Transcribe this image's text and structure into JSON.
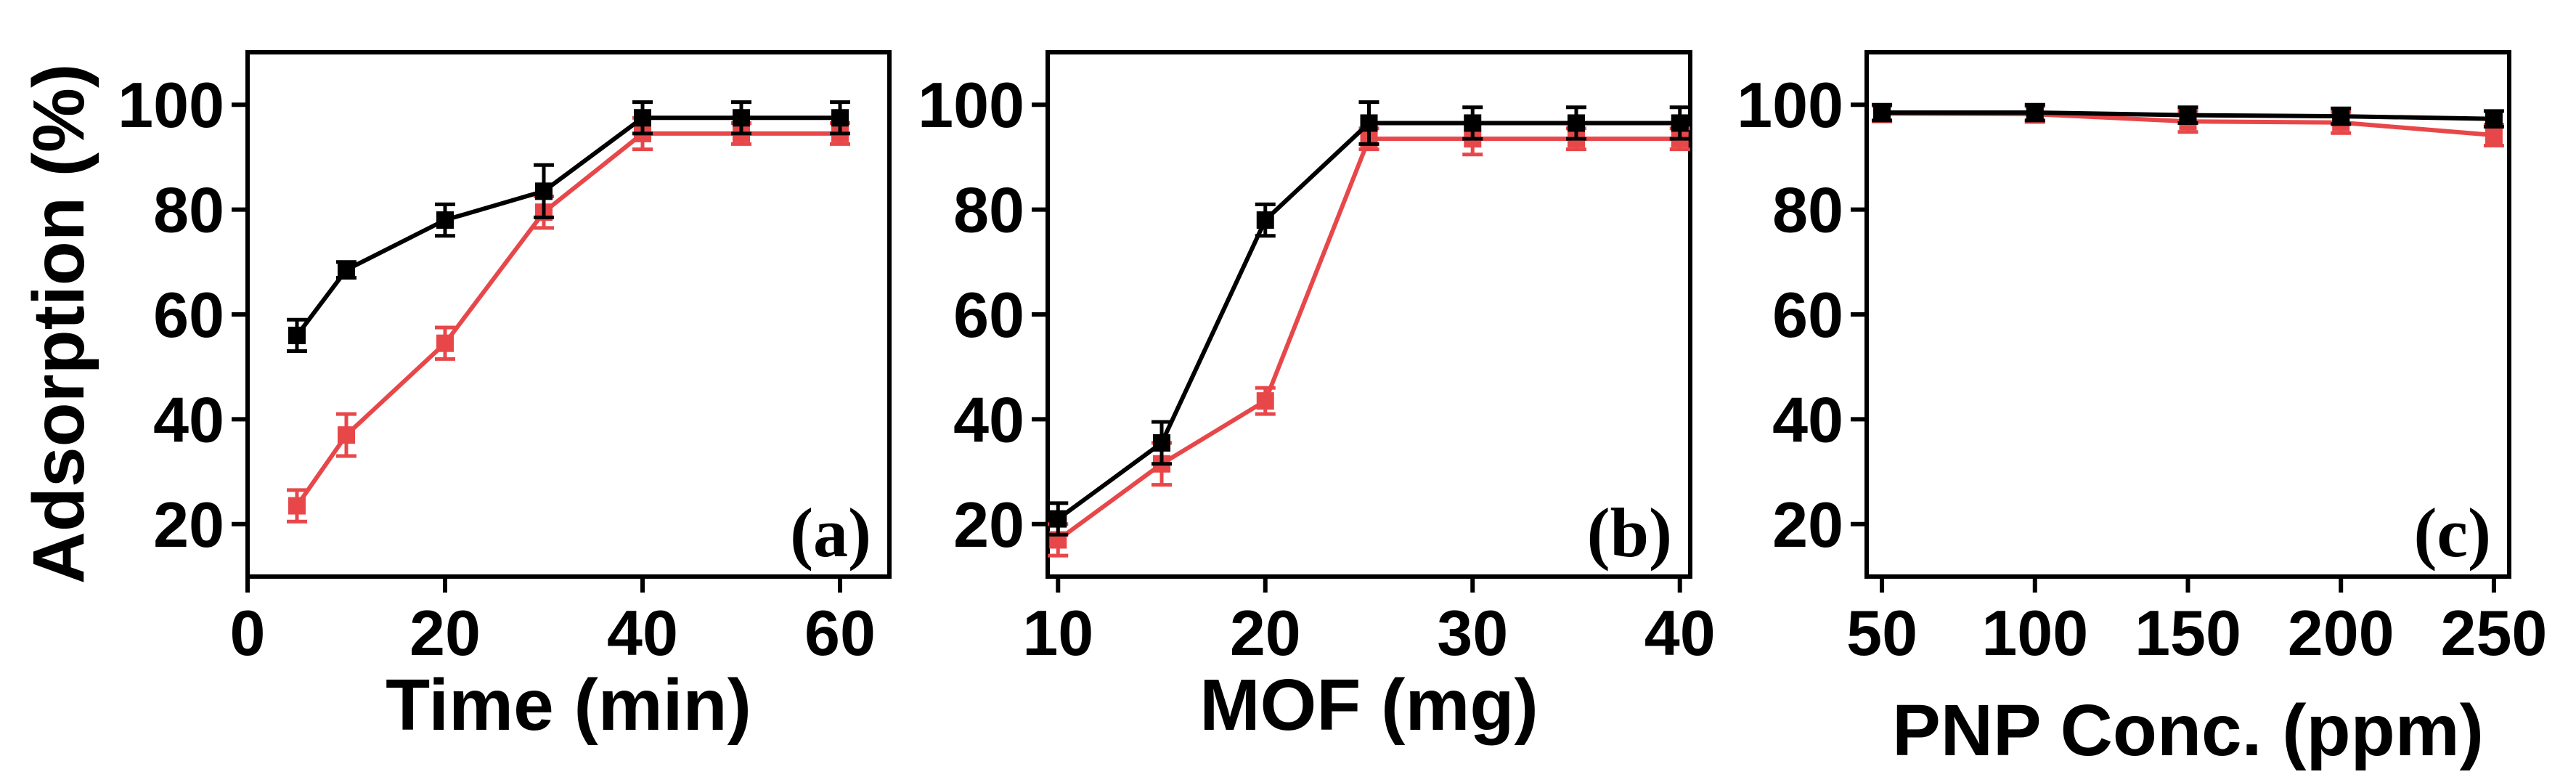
{
  "chart_data": [
    {
      "type": "line",
      "panel_label": "(a)",
      "xlabel": "Time (min)",
      "ylabel": "Adsorption (%)",
      "xlim": [
        0,
        65
      ],
      "ylim": [
        10,
        110
      ],
      "xticks": [
        0,
        20,
        40,
        60
      ],
      "yticks": [
        20,
        40,
        60,
        80,
        100
      ],
      "grid": false,
      "series": [
        {
          "name": "black",
          "color": "#000000",
          "x": [
            5,
            10,
            20,
            30,
            40,
            50,
            60
          ],
          "values": [
            56,
            68.5,
            78,
            83.5,
            97.5,
            97.5,
            97.5
          ],
          "errors": [
            3,
            1.5,
            3,
            5,
            3,
            3,
            3
          ]
        },
        {
          "name": "red",
          "color": "#e8474a",
          "x": [
            5,
            10,
            20,
            30,
            40,
            50,
            60
          ],
          "values": [
            23.5,
            37,
            54.5,
            79.5,
            94.5,
            94.5,
            94.5
          ],
          "errors": [
            3,
            4,
            3,
            3,
            3,
            2,
            2
          ]
        }
      ]
    },
    {
      "type": "line",
      "panel_label": "(b)",
      "xlabel": "MOF (mg)",
      "ylabel": "",
      "xlim": [
        9.5,
        40.5
      ],
      "ylim": [
        10,
        110
      ],
      "xticks": [
        10,
        20,
        30,
        40
      ],
      "yticks": [
        20,
        40,
        60,
        80,
        100
      ],
      "grid": false,
      "series": [
        {
          "name": "black",
          "color": "#000000",
          "x": [
            10,
            15,
            20,
            25,
            30,
            35,
            40
          ],
          "values": [
            21,
            35.5,
            78,
            96.5,
            96.5,
            96.5,
            96.5
          ],
          "errors": [
            3,
            4,
            3,
            4,
            3,
            3,
            3
          ]
        },
        {
          "name": "red",
          "color": "#e8474a",
          "x": [
            10,
            15,
            20,
            25,
            30,
            35,
            40
          ],
          "values": [
            17,
            31.5,
            43.5,
            93.5,
            93.5,
            93.5,
            93.5
          ],
          "errors": [
            3,
            4,
            2.5,
            2,
            3,
            2,
            2
          ]
        }
      ]
    },
    {
      "type": "line",
      "panel_label": "(c)",
      "xlabel": "PNP Conc. (ppm)",
      "ylabel": "",
      "xlim": [
        45,
        255
      ],
      "ylim": [
        10,
        110
      ],
      "xticks": [
        50,
        100,
        150,
        200,
        250
      ],
      "yticks": [
        20,
        40,
        60,
        80,
        100
      ],
      "grid": false,
      "series": [
        {
          "name": "black",
          "color": "#000000",
          "x": [
            50,
            100,
            150,
            200,
            250
          ],
          "values": [
            98.5,
            98.5,
            98,
            97.8,
            97.3
          ],
          "errors": [
            1.5,
            1.5,
            1.5,
            1.5,
            1.5
          ]
        },
        {
          "name": "red",
          "color": "#e8474a",
          "x": [
            50,
            100,
            150,
            200,
            250
          ],
          "values": [
            98.3,
            98.2,
            96.8,
            96.6,
            94.2
          ],
          "errors": [
            1.5,
            1.5,
            2,
            2,
            2
          ]
        }
      ]
    }
  ]
}
